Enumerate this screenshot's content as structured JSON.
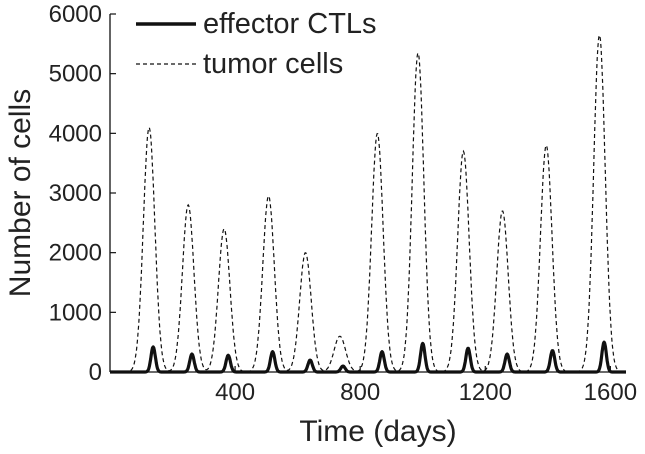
{
  "chart_data": {
    "type": "line",
    "title": "",
    "xlabel": "Time (days)",
    "ylabel": "Number of cells",
    "xlim": [
      0,
      1650
    ],
    "ylim": [
      0,
      6000
    ],
    "xticks": [
      400,
      800,
      1200,
      1600
    ],
    "yticks": [
      0,
      1000,
      2000,
      3000,
      4000,
      5000,
      6000
    ],
    "grid": false,
    "legend_position": "top-left",
    "series": [
      {
        "name": "effector CTLs",
        "style": "solid",
        "color": "#111111",
        "peaks": [
          {
            "x": 138,
            "y": 420
          },
          {
            "x": 262,
            "y": 300
          },
          {
            "x": 378,
            "y": 280
          },
          {
            "x": 520,
            "y": 340
          },
          {
            "x": 640,
            "y": 200
          },
          {
            "x": 745,
            "y": 100
          },
          {
            "x": 870,
            "y": 340
          },
          {
            "x": 1000,
            "y": 480
          },
          {
            "x": 1145,
            "y": 400
          },
          {
            "x": 1270,
            "y": 300
          },
          {
            "x": 1415,
            "y": 360
          },
          {
            "x": 1580,
            "y": 500
          }
        ]
      },
      {
        "name": "tumor cells",
        "style": "dashed",
        "color": "#111111",
        "peaks": [
          {
            "x": 125,
            "y": 4100
          },
          {
            "x": 250,
            "y": 2800
          },
          {
            "x": 365,
            "y": 2400
          },
          {
            "x": 507,
            "y": 2950
          },
          {
            "x": 625,
            "y": 2000
          },
          {
            "x": 735,
            "y": 600
          },
          {
            "x": 855,
            "y": 4000
          },
          {
            "x": 985,
            "y": 5350
          },
          {
            "x": 1130,
            "y": 3700
          },
          {
            "x": 1255,
            "y": 2700
          },
          {
            "x": 1395,
            "y": 3800
          },
          {
            "x": 1565,
            "y": 5650
          }
        ]
      }
    ]
  }
}
